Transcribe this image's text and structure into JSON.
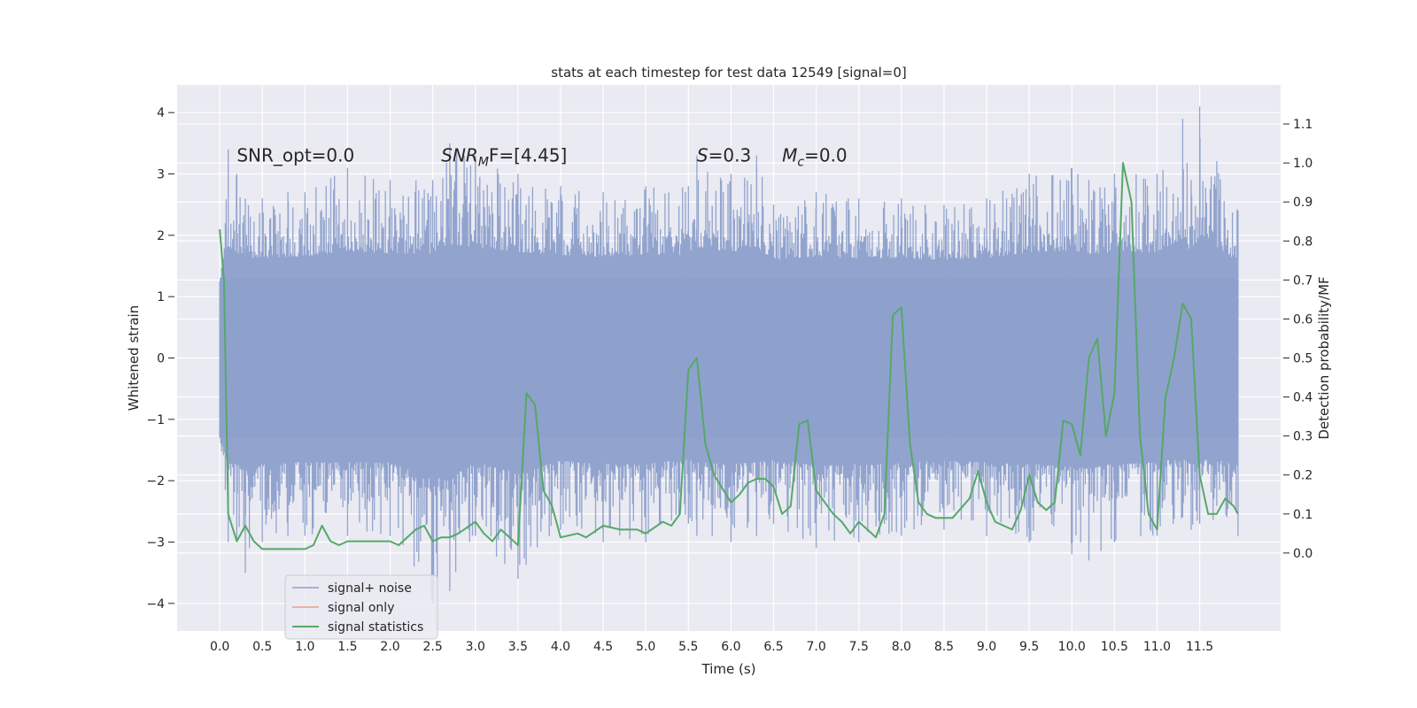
{
  "chart_data": {
    "type": "line",
    "title": "stats at each timestep for test data 12549 [signal=0]",
    "xlabel": "Time (s)",
    "ylabel": "Whitened strain",
    "y2label": "Detection probability/MF",
    "xlim": [
      -0.5,
      12.45
    ],
    "ylim": [
      -4.45,
      4.45
    ],
    "y2lim": [
      -0.2,
      1.2
    ],
    "x_ticks": [
      "0.0",
      "0.5",
      "1.0",
      "1.5",
      "2.0",
      "2.5",
      "3.0",
      "3.5",
      "4.0",
      "4.5",
      "5.0",
      "5.5",
      "6.0",
      "6.5",
      "7.0",
      "7.5",
      "8.0",
      "8.5",
      "9.0",
      "9.5",
      "10.0",
      "10.5",
      "11.0",
      "11.5"
    ],
    "y_ticks": [
      "4",
      "3",
      "2",
      "1",
      "0",
      "−1",
      "−2",
      "−3",
      "−4"
    ],
    "y2_ticks": [
      "1.1",
      "1.0",
      "0.9",
      "0.8",
      "0.7",
      "0.6",
      "0.5",
      "0.4",
      "0.3",
      "0.2",
      "0.1",
      "0.0"
    ],
    "grid": true,
    "legend_position": "lower-left",
    "annotations": [
      {
        "text": "SNR_opt=0.0",
        "x": 0.2,
        "y": 3.3
      },
      {
        "text": "SNR",
        "sub": "M",
        "tail": "F=[4.45]",
        "italic_head": true,
        "x": 2.6,
        "y": 3.3
      },
      {
        "text": "S",
        "tail": "=0.3",
        "italic_head": true,
        "x": 5.6,
        "y": 3.3
      },
      {
        "text": "M",
        "sub": "c",
        "tail": "=0.0",
        "italic_head": true,
        "x": 6.6,
        "y": 3.3
      }
    ],
    "series": [
      {
        "name": "signal+ noise",
        "color": "#8da0cb",
        "axis": "left",
        "description_values": "noise band",
        "envelope": {
          "x": [
            0.0,
            0.1,
            0.2,
            0.3,
            0.5,
            0.8,
            1.0,
            1.5,
            2.0,
            2.5,
            2.7,
            3.0,
            3.5,
            4.0,
            4.5,
            5.0,
            5.5,
            5.6,
            6.0,
            6.3,
            6.5,
            7.0,
            7.5,
            8.0,
            8.5,
            9.0,
            9.5,
            10.0,
            10.2,
            10.5,
            11.0,
            11.3,
            11.4,
            11.5,
            11.95
          ],
          "upper": [
            1.1,
            3.4,
            3.0,
            2.6,
            2.6,
            2.7,
            2.7,
            3.1,
            2.9,
            2.9,
            3.5,
            3.3,
            3.0,
            2.8,
            2.7,
            2.8,
            2.8,
            3.3,
            3.0,
            3.3,
            2.5,
            2.7,
            2.6,
            2.6,
            2.5,
            2.6,
            3.0,
            3.1,
            2.9,
            3.0,
            3.0,
            3.9,
            2.9,
            4.1,
            2.4
          ],
          "lower": [
            -1.3,
            -3.0,
            -3.0,
            -3.5,
            -3.0,
            -2.9,
            -2.9,
            -2.9,
            -2.9,
            -4.0,
            -3.8,
            -2.9,
            -3.6,
            -2.8,
            -3.0,
            -3.0,
            -2.7,
            -2.9,
            -3.0,
            -2.9,
            -2.7,
            -3.1,
            -3.0,
            -2.9,
            -2.8,
            -2.9,
            -3.0,
            -3.2,
            -3.3,
            -3.0,
            -2.9,
            -2.6,
            -2.8,
            -2.7,
            -2.9
          ]
        }
      },
      {
        "name": "signal only",
        "color": "#e5a58a",
        "axis": "left",
        "x": [],
        "y": []
      },
      {
        "name": "signal statistics",
        "color": "#55a868",
        "axis": "right",
        "x": [
          0.0,
          0.05,
          0.1,
          0.2,
          0.3,
          0.4,
          0.5,
          0.6,
          0.8,
          1.0,
          1.1,
          1.2,
          1.3,
          1.4,
          1.5,
          1.7,
          1.9,
          2.0,
          2.1,
          2.3,
          2.4,
          2.5,
          2.6,
          2.7,
          2.8,
          3.0,
          3.1,
          3.2,
          3.3,
          3.5,
          3.6,
          3.7,
          3.8,
          3.9,
          4.0,
          4.2,
          4.3,
          4.5,
          4.7,
          4.9,
          5.0,
          5.2,
          5.3,
          5.4,
          5.5,
          5.6,
          5.7,
          5.8,
          6.0,
          6.1,
          6.2,
          6.3,
          6.4,
          6.5,
          6.6,
          6.7,
          6.8,
          6.9,
          7.0,
          7.2,
          7.3,
          7.4,
          7.5,
          7.6,
          7.7,
          7.8,
          7.9,
          8.0,
          8.1,
          8.2,
          8.3,
          8.4,
          8.6,
          8.8,
          8.9,
          9.0,
          9.1,
          9.3,
          9.4,
          9.5,
          9.6,
          9.7,
          9.8,
          9.9,
          10.0,
          10.1,
          10.2,
          10.3,
          10.4,
          10.5,
          10.6,
          10.7,
          10.8,
          10.9,
          11.0,
          11.1,
          11.2,
          11.3,
          11.4,
          11.5,
          11.6,
          11.7,
          11.8,
          11.9,
          11.95
        ],
        "y": [
          0.83,
          0.7,
          0.1,
          0.03,
          0.07,
          0.03,
          0.01,
          0.01,
          0.01,
          0.01,
          0.02,
          0.07,
          0.03,
          0.02,
          0.03,
          0.03,
          0.03,
          0.03,
          0.02,
          0.06,
          0.07,
          0.03,
          0.04,
          0.04,
          0.05,
          0.08,
          0.05,
          0.03,
          0.06,
          0.02,
          0.41,
          0.38,
          0.16,
          0.12,
          0.04,
          0.05,
          0.04,
          0.07,
          0.06,
          0.06,
          0.05,
          0.08,
          0.07,
          0.1,
          0.47,
          0.5,
          0.28,
          0.2,
          0.13,
          0.15,
          0.18,
          0.19,
          0.19,
          0.17,
          0.1,
          0.12,
          0.33,
          0.34,
          0.16,
          0.1,
          0.08,
          0.05,
          0.08,
          0.06,
          0.04,
          0.1,
          0.61,
          0.63,
          0.28,
          0.13,
          0.1,
          0.09,
          0.09,
          0.14,
          0.21,
          0.13,
          0.08,
          0.06,
          0.11,
          0.2,
          0.13,
          0.11,
          0.13,
          0.34,
          0.33,
          0.25,
          0.5,
          0.55,
          0.3,
          0.41,
          1.0,
          0.9,
          0.3,
          0.1,
          0.06,
          0.4,
          0.5,
          0.64,
          0.6,
          0.2,
          0.1,
          0.1,
          0.14,
          0.12,
          0.1
        ]
      }
    ]
  }
}
